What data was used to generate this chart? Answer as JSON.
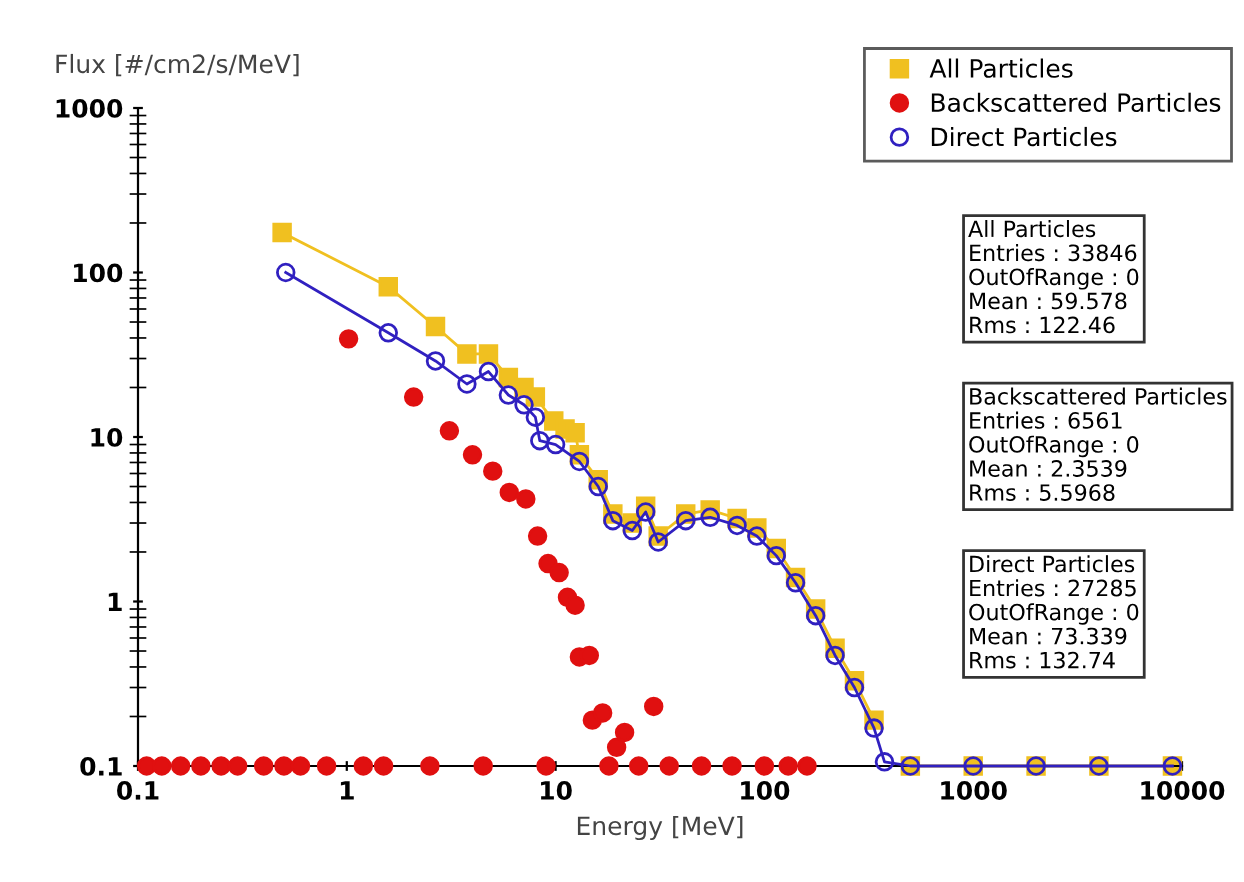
{
  "chart_data": {
    "type": "line",
    "xlabel": "Energy [MeV]",
    "ylabel": "Flux [#/cm2/s/MeV]",
    "log": "xy",
    "xlim": [
      0.1,
      10000
    ],
    "ylim": [
      0.1,
      1000
    ],
    "xticks": [
      0.1,
      1,
      10,
      100,
      1000,
      10000
    ],
    "yticks": [
      0.1,
      1,
      10,
      100,
      1000
    ],
    "grid": false,
    "legend": "top right",
    "series": [
      {
        "name": "All Particles",
        "marker": "square",
        "color": "#f0c020",
        "x": [
          0.49,
          1.58,
          2.66,
          3.76,
          4.77,
          5.94,
          7.06,
          8.0,
          9.8,
          11.1,
          12.4,
          13,
          16,
          18.8,
          23.3,
          27,
          31,
          42,
          55,
          74,
          92,
          114,
          141,
          176,
          218,
          270,
          335,
          376,
          500,
          1000,
          2000,
          4000,
          9000
        ],
        "values": [
          175,
          82,
          47,
          32,
          32,
          23,
          20,
          17.5,
          12.5,
          11.2,
          10.6,
          7.8,
          5.5,
          3.4,
          3.0,
          3.8,
          2.5,
          3.4,
          3.6,
          3.2,
          2.8,
          2.1,
          1.4,
          0.9,
          0.52,
          0.33,
          0.19,
          null,
          0.1,
          0.1,
          0.1,
          0.1,
          0.1
        ]
      },
      {
        "name": "Backscattered Particles",
        "type": "scatter",
        "marker": "circle",
        "color": "#e01010",
        "x": [
          1.02,
          2.09,
          3.1,
          4.0,
          5.0,
          6.0,
          7.2,
          8.2,
          9.2,
          10.4,
          11.4,
          12.4,
          13,
          14.5,
          15,
          16.8,
          19.6,
          21.4,
          29.5,
          0.11,
          0.13,
          0.16,
          0.2,
          0.25,
          0.3,
          0.4,
          0.5,
          0.6,
          0.8,
          1.2,
          1.5,
          2.5,
          4.5,
          9,
          18,
          25,
          35,
          50,
          70,
          100,
          130,
          160
        ],
        "values": [
          39.5,
          17.5,
          10.9,
          7.8,
          6.2,
          4.6,
          4.2,
          2.5,
          1.7,
          1.5,
          1.06,
          0.95,
          0.46,
          0.47,
          0.19,
          0.21,
          0.13,
          0.16,
          0.23,
          0.1,
          0.1,
          0.1,
          0.1,
          0.1,
          0.1,
          0.1,
          0.1,
          0.1,
          0.1,
          0.1,
          0.1,
          0.1,
          0.1,
          0.1,
          0.1,
          0.1,
          0.1,
          0.1,
          0.1,
          0.1,
          0.1,
          0.1
        ]
      },
      {
        "name": "Direct Particles",
        "marker": "circle",
        "color": "#3020c0",
        "x": [
          0.51,
          1.58,
          2.66,
          3.76,
          4.77,
          5.94,
          7.06,
          8.0,
          8.4,
          10,
          13,
          16,
          18.8,
          23.3,
          27,
          31,
          42,
          55,
          74,
          92,
          114,
          141,
          176,
          218,
          270,
          335,
          376,
          500,
          1000,
          2000,
          4000,
          9000
        ],
        "values": [
          100,
          43,
          29,
          21,
          25,
          18,
          15.7,
          13.2,
          9.5,
          9,
          7.1,
          5,
          3.1,
          2.7,
          3.5,
          2.3,
          3.1,
          3.25,
          2.9,
          2.5,
          1.9,
          1.3,
          0.82,
          0.47,
          0.3,
          0.17,
          0.106,
          0.1,
          0.1,
          0.1,
          0.1,
          0.1
        ]
      }
    ],
    "annotations": [
      "All Particles\nEntries : 33846\nOutOfRange : 0\nMean : 59.578\nRms : 122.46",
      "Backscattered Particles\nEntries : 6561\nOutOfRange : 0\nMean : 2.3539\nRms : 5.5968",
      "Direct Particles\nEntries : 27285\nOutOfRange : 0\nMean : 73.339\nRms : 132.74"
    ]
  }
}
